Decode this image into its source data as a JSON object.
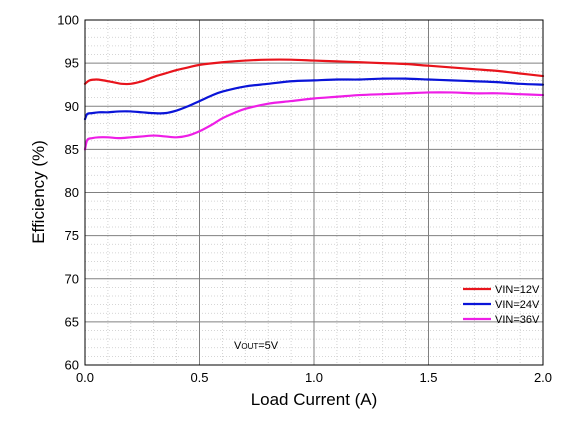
{
  "chart_data": {
    "type": "line",
    "xlabel": "Load Current (A)",
    "ylabel": "Efficiency (%)",
    "xlim": [
      0.0,
      2.0
    ],
    "ylim": [
      60,
      100
    ],
    "x_ticks": [
      0.0,
      0.5,
      1.0,
      1.5,
      2.0
    ],
    "x_tick_labels": [
      "0.0",
      "0.5",
      "1.0",
      "1.5",
      "2.0"
    ],
    "y_ticks": [
      60,
      65,
      70,
      75,
      80,
      85,
      90,
      95,
      100
    ],
    "y_tick_labels": [
      "60",
      "65",
      "70",
      "75",
      "80",
      "85",
      "90",
      "95",
      "100"
    ],
    "grid": true,
    "legend_position": "bottom-right",
    "annotation": {
      "prefix": "V",
      "subscript": "OUT",
      "suffix": "=5V"
    },
    "series": [
      {
        "name": "VIN=12V",
        "color": "#e8141c",
        "points": [
          [
            0.0,
            92.6
          ],
          [
            0.02,
            93.0
          ],
          [
            0.05,
            93.1
          ],
          [
            0.08,
            93.0
          ],
          [
            0.12,
            92.8
          ],
          [
            0.16,
            92.6
          ],
          [
            0.2,
            92.6
          ],
          [
            0.25,
            92.9
          ],
          [
            0.3,
            93.4
          ],
          [
            0.35,
            93.8
          ],
          [
            0.4,
            94.2
          ],
          [
            0.45,
            94.5
          ],
          [
            0.5,
            94.8
          ],
          [
            0.6,
            95.1
          ],
          [
            0.7,
            95.3
          ],
          [
            0.8,
            95.4
          ],
          [
            0.9,
            95.4
          ],
          [
            1.0,
            95.3
          ],
          [
            1.1,
            95.2
          ],
          [
            1.2,
            95.1
          ],
          [
            1.3,
            95.0
          ],
          [
            1.4,
            94.9
          ],
          [
            1.5,
            94.7
          ],
          [
            1.6,
            94.5
          ],
          [
            1.7,
            94.3
          ],
          [
            1.8,
            94.1
          ],
          [
            1.9,
            93.8
          ],
          [
            2.0,
            93.5
          ]
        ]
      },
      {
        "name": "VIN=24V",
        "color": "#0a14d8",
        "points": [
          [
            0.0,
            88.5
          ],
          [
            0.01,
            89.1
          ],
          [
            0.03,
            89.2
          ],
          [
            0.06,
            89.3
          ],
          [
            0.1,
            89.3
          ],
          [
            0.15,
            89.4
          ],
          [
            0.2,
            89.4
          ],
          [
            0.25,
            89.3
          ],
          [
            0.3,
            89.2
          ],
          [
            0.35,
            89.2
          ],
          [
            0.4,
            89.5
          ],
          [
            0.45,
            90.0
          ],
          [
            0.5,
            90.6
          ],
          [
            0.55,
            91.2
          ],
          [
            0.6,
            91.7
          ],
          [
            0.7,
            92.3
          ],
          [
            0.8,
            92.6
          ],
          [
            0.9,
            92.9
          ],
          [
            1.0,
            93.0
          ],
          [
            1.1,
            93.1
          ],
          [
            1.2,
            93.1
          ],
          [
            1.3,
            93.2
          ],
          [
            1.4,
            93.2
          ],
          [
            1.5,
            93.1
          ],
          [
            1.6,
            93.0
          ],
          [
            1.7,
            92.9
          ],
          [
            1.8,
            92.8
          ],
          [
            1.9,
            92.6
          ],
          [
            2.0,
            92.5
          ]
        ]
      },
      {
        "name": "VIN=36V",
        "color": "#ee1ee6",
        "points": [
          [
            0.0,
            85.0
          ],
          [
            0.01,
            86.1
          ],
          [
            0.03,
            86.3
          ],
          [
            0.06,
            86.4
          ],
          [
            0.1,
            86.4
          ],
          [
            0.15,
            86.3
          ],
          [
            0.2,
            86.4
          ],
          [
            0.25,
            86.5
          ],
          [
            0.3,
            86.6
          ],
          [
            0.35,
            86.5
          ],
          [
            0.4,
            86.4
          ],
          [
            0.45,
            86.6
          ],
          [
            0.5,
            87.1
          ],
          [
            0.55,
            87.8
          ],
          [
            0.6,
            88.6
          ],
          [
            0.65,
            89.2
          ],
          [
            0.7,
            89.7
          ],
          [
            0.8,
            90.3
          ],
          [
            0.9,
            90.6
          ],
          [
            1.0,
            90.9
          ],
          [
            1.1,
            91.1
          ],
          [
            1.2,
            91.3
          ],
          [
            1.3,
            91.4
          ],
          [
            1.4,
            91.5
          ],
          [
            1.5,
            91.6
          ],
          [
            1.6,
            91.6
          ],
          [
            1.7,
            91.5
          ],
          [
            1.8,
            91.5
          ],
          [
            1.9,
            91.4
          ],
          [
            2.0,
            91.3
          ]
        ]
      }
    ]
  }
}
